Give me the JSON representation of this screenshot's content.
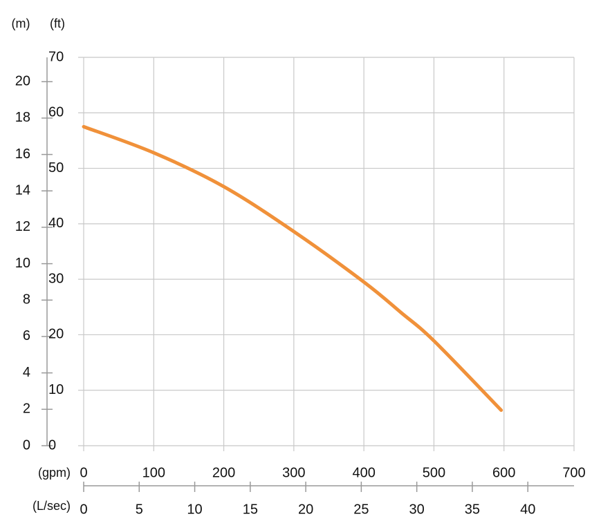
{
  "chart_data": {
    "type": "line",
    "x": [
      0,
      100,
      200,
      300,
      400,
      453,
      500,
      596
    ],
    "series": [
      {
        "color": "#f0913a",
        "values": [
          57.5,
          52.8,
          46.7,
          38.6,
          29.5,
          24,
          18.9,
          6.4
        ]
      }
    ],
    "xlabel": "(gpm)",
    "xlim": [
      0,
      700
    ],
    "xticks": [
      0,
      100,
      200,
      300,
      400,
      500,
      600,
      700
    ],
    "x2label": "(L/sec)",
    "x2lim": [
      0,
      44.16
    ],
    "x2ticks": [
      0,
      5,
      10,
      15,
      20,
      25,
      30,
      35,
      40
    ],
    "ylabel": "(ft)",
    "ylim": [
      0,
      70
    ],
    "yticks": [
      0,
      10,
      20,
      30,
      40,
      50,
      60,
      70
    ],
    "y2label": "(m)",
    "y2lim": [
      0,
      21.336
    ],
    "y2ticks": [
      0,
      2,
      4,
      6,
      8,
      10,
      12,
      14,
      16,
      18,
      20
    ],
    "grid": true
  }
}
